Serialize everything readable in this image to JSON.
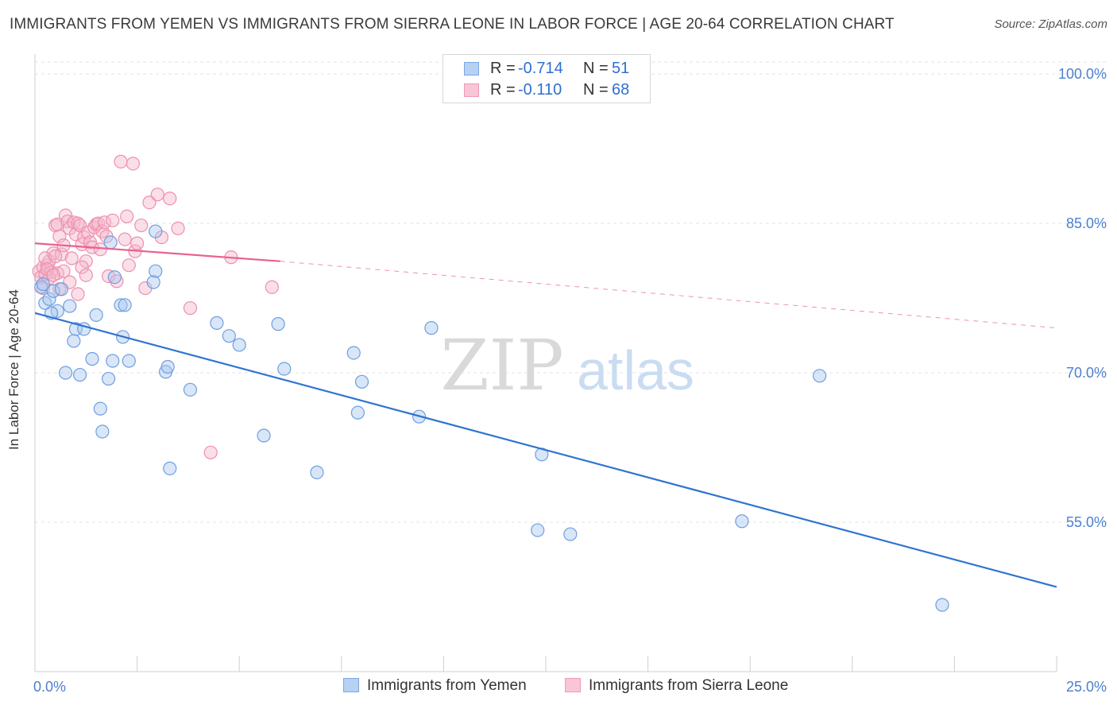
{
  "header": {
    "title": "IMMIGRANTS FROM YEMEN VS IMMIGRANTS FROM SIERRA LEONE IN LABOR FORCE | AGE 20-64 CORRELATION CHART",
    "source": "Source: ZipAtlas.com"
  },
  "watermark": {
    "zip": "ZIP",
    "atlas": "atlas"
  },
  "legend": {
    "rows": [
      {
        "r_label": "R =",
        "r_value": "-0.714",
        "n_label": "N =",
        "n_value": "51"
      },
      {
        "r_label": "R =",
        "r_value": "-0.110",
        "n_label": "N =",
        "n_value": "68"
      }
    ]
  },
  "bottom_legend": {
    "yemen": "Immigrants from Yemen",
    "sierra": "Immigrants from Sierra Leone"
  },
  "colors": {
    "blue_fill": "#a9c8f0",
    "blue_stroke": "#6f9ee0",
    "blue_line": "#2f74d0",
    "pink_fill": "#f5b7cb",
    "pink_stroke": "#ee8fad",
    "pink_line": "#e8628f",
    "grid": "#e3e3e3",
    "tick_label": "#4c7fd0"
  },
  "chart_data": {
    "type": "scatter",
    "title": "IMMIGRANTS FROM YEMEN VS IMMIGRANTS FROM SIERRA LEONE IN LABOR FORCE | AGE 20-64 CORRELATION CHART",
    "xlabel": "",
    "ylabel": "In Labor Force | Age 20-64",
    "xlim": [
      0,
      25
    ],
    "ylim": [
      40,
      102
    ],
    "x_tick_labels": [
      "0.0%",
      "25.0%"
    ],
    "y_ticks": [
      55,
      70,
      85,
      100
    ],
    "y_tick_labels": [
      "55.0%",
      "70.0%",
      "85.0%",
      "100.0%"
    ],
    "grid": true,
    "legend_position": "top-center",
    "series": [
      {
        "name": "Immigrants from Yemen",
        "color": "#a9c8f0",
        "points": [
          [
            0.15,
            78.6
          ],
          [
            0.25,
            77.0
          ],
          [
            0.35,
            77.4
          ],
          [
            0.45,
            78.2
          ],
          [
            0.55,
            76.2
          ],
          [
            0.4,
            76.0
          ],
          [
            0.65,
            78.4
          ],
          [
            0.85,
            76.7
          ],
          [
            0.95,
            73.2
          ],
          [
            1.0,
            74.4
          ],
          [
            1.2,
            74.4
          ],
          [
            0.75,
            70.0
          ],
          [
            1.1,
            69.8
          ],
          [
            1.4,
            71.4
          ],
          [
            1.5,
            75.8
          ],
          [
            1.6,
            66.4
          ],
          [
            1.65,
            64.1
          ],
          [
            1.8,
            69.4
          ],
          [
            1.9,
            71.2
          ],
          [
            1.85,
            83.1
          ],
          [
            1.95,
            79.6
          ],
          [
            2.1,
            76.8
          ],
          [
            2.15,
            73.6
          ],
          [
            2.2,
            76.8
          ],
          [
            2.3,
            71.2
          ],
          [
            2.95,
            84.2
          ],
          [
            2.95,
            80.2
          ],
          [
            2.9,
            79.1
          ],
          [
            3.2,
            70.1
          ],
          [
            3.25,
            70.6
          ],
          [
            3.3,
            60.4
          ],
          [
            3.8,
            68.3
          ],
          [
            4.45,
            75.0
          ],
          [
            4.75,
            73.7
          ],
          [
            5.0,
            72.8
          ],
          [
            5.6,
            63.7
          ],
          [
            5.95,
            74.9
          ],
          [
            6.1,
            70.4
          ],
          [
            6.9,
            60.0
          ],
          [
            7.8,
            72.0
          ],
          [
            7.9,
            66.0
          ],
          [
            8.0,
            69.1
          ],
          [
            9.4,
            65.6
          ],
          [
            9.7,
            74.5
          ],
          [
            12.3,
            54.2
          ],
          [
            12.4,
            61.8
          ],
          [
            13.1,
            53.8
          ],
          [
            17.3,
            55.1
          ],
          [
            19.2,
            69.7
          ],
          [
            22.2,
            46.7
          ],
          [
            0.2,
            78.9
          ]
        ]
      },
      {
        "name": "Immigrants from Sierra Leone",
        "color": "#f5b7cb",
        "points": [
          [
            0.1,
            80.2
          ],
          [
            0.15,
            79.6
          ],
          [
            0.2,
            80.6
          ],
          [
            0.25,
            79.9
          ],
          [
            0.3,
            80.8
          ],
          [
            0.35,
            81.2
          ],
          [
            0.4,
            80.1
          ],
          [
            0.45,
            82.0
          ],
          [
            0.5,
            84.8
          ],
          [
            0.55,
            84.9
          ],
          [
            0.6,
            83.7
          ],
          [
            0.65,
            81.9
          ],
          [
            0.7,
            82.8
          ],
          [
            0.75,
            85.8
          ],
          [
            0.8,
            85.2
          ],
          [
            0.85,
            84.5
          ],
          [
            0.9,
            81.5
          ],
          [
            0.95,
            85.1
          ],
          [
            1.0,
            83.9
          ],
          [
            1.05,
            85.0
          ],
          [
            1.1,
            84.8
          ],
          [
            1.15,
            82.9
          ],
          [
            1.2,
            83.6
          ],
          [
            1.25,
            81.2
          ],
          [
            1.3,
            84.1
          ],
          [
            1.35,
            83.1
          ],
          [
            1.4,
            82.6
          ],
          [
            1.45,
            84.6
          ],
          [
            1.5,
            84.9
          ],
          [
            1.55,
            85.0
          ],
          [
            1.6,
            82.4
          ],
          [
            1.65,
            84.2
          ],
          [
            1.7,
            85.1
          ],
          [
            1.75,
            83.7
          ],
          [
            1.8,
            79.7
          ],
          [
            1.9,
            85.3
          ],
          [
            2.0,
            79.2
          ],
          [
            2.1,
            91.2
          ],
          [
            2.2,
            83.4
          ],
          [
            2.25,
            85.7
          ],
          [
            2.3,
            80.8
          ],
          [
            2.4,
            91.0
          ],
          [
            2.45,
            82.2
          ],
          [
            2.5,
            83.0
          ],
          [
            2.6,
            84.8
          ],
          [
            2.7,
            78.5
          ],
          [
            2.8,
            87.1
          ],
          [
            3.1,
            83.6
          ],
          [
            3.0,
            87.9
          ],
          [
            3.3,
            87.5
          ],
          [
            3.5,
            84.5
          ],
          [
            3.8,
            76.5
          ],
          [
            4.3,
            62.0
          ],
          [
            4.8,
            81.6
          ],
          [
            5.8,
            78.6
          ],
          [
            0.25,
            81.5
          ],
          [
            0.5,
            81.7
          ],
          [
            0.55,
            80.0
          ],
          [
            0.35,
            79.5
          ],
          [
            0.7,
            80.2
          ],
          [
            0.85,
            79.1
          ],
          [
            1.05,
            77.9
          ],
          [
            1.15,
            80.6
          ],
          [
            1.25,
            79.8
          ],
          [
            0.2,
            78.5
          ],
          [
            0.6,
            78.4
          ],
          [
            0.3,
            80.4
          ],
          [
            0.45,
            79.8
          ]
        ]
      }
    ],
    "trend_lines": [
      {
        "series": "Immigrants from Yemen",
        "x": [
          0,
          25
        ],
        "y": [
          76.0,
          48.5
        ],
        "style": "solid"
      },
      {
        "series": "Immigrants from Sierra Leone",
        "x": [
          0,
          6.0
        ],
        "y": [
          83.0,
          81.2
        ],
        "style": "solid"
      },
      {
        "series": "Immigrants from Sierra Leone",
        "x": [
          6.0,
          25
        ],
        "y": [
          81.2,
          74.5
        ],
        "style": "dashed"
      }
    ]
  }
}
